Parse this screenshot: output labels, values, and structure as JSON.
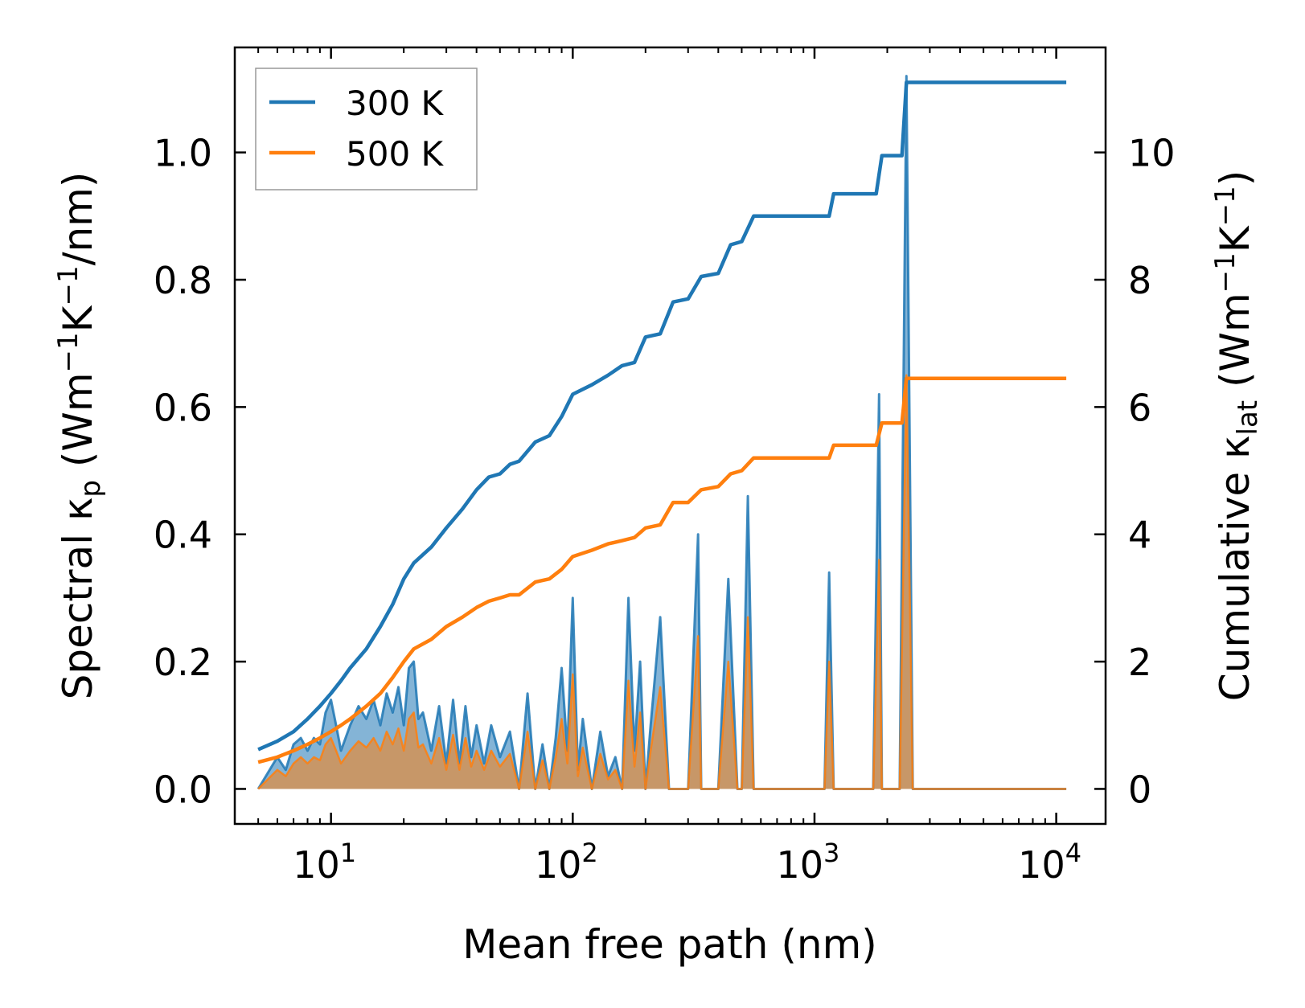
{
  "chart_data": {
    "type": "line",
    "x_scale": "log",
    "xlabel": "Mean free path (nm)",
    "xlim": [
      4.0,
      16000
    ],
    "xticks": [
      {
        "value": 10,
        "base": "10",
        "exp": "1"
      },
      {
        "value": 100,
        "base": "10",
        "exp": "2"
      },
      {
        "value": 1000,
        "base": "10",
        "exp": "3"
      },
      {
        "value": 10000,
        "base": "10",
        "exp": "4"
      }
    ],
    "y_left": {
      "label_parts": [
        "Spectral κ",
        "p",
        " (Wm",
        "−1",
        "K",
        "−1",
        "/nm)"
      ],
      "ylim": [
        -0.055,
        1.165
      ],
      "ticks": [
        0.0,
        0.2,
        0.4,
        0.6,
        0.8,
        1.0
      ],
      "tick_labels": [
        "0.0",
        "0.2",
        "0.4",
        "0.6",
        "0.8",
        "1.0"
      ]
    },
    "y_right": {
      "label_parts": [
        "Cumulative κ",
        "lat",
        " (Wm",
        "−1",
        "K",
        "−1",
        ")"
      ],
      "ylim": [
        -0.55,
        11.65
      ],
      "ticks": [
        0,
        2,
        4,
        6,
        8,
        10
      ],
      "tick_labels": [
        "0",
        "2",
        "4",
        "6",
        "8",
        "10"
      ]
    },
    "legend": {
      "position": "top-left",
      "entries": [
        "300 K",
        "500 K"
      ]
    },
    "colors": {
      "300 K": "#1f77b4",
      "500 K": "#ff7f0e",
      "fill_300": "#1f77b4",
      "fill_500": "#ff7f0e"
    },
    "cumulative": [
      {
        "name": "300 K",
        "axis": "right",
        "x": [
          5,
          6,
          7,
          8,
          9,
          10,
          11,
          12,
          14,
          16,
          18,
          20,
          22,
          26,
          30,
          35,
          40,
          45,
          50,
          55,
          60,
          70,
          80,
          90,
          100,
          120,
          140,
          160,
          180,
          200,
          230,
          260,
          300,
          340,
          400,
          450,
          500,
          560,
          700,
          900,
          1150,
          1200,
          1500,
          1800,
          1900,
          2300,
          2400,
          11000
        ],
        "y": [
          0.62,
          0.75,
          0.9,
          1.1,
          1.3,
          1.5,
          1.7,
          1.9,
          2.2,
          2.55,
          2.9,
          3.3,
          3.55,
          3.8,
          4.1,
          4.4,
          4.7,
          4.9,
          4.95,
          5.1,
          5.15,
          5.45,
          5.55,
          5.85,
          6.2,
          6.35,
          6.5,
          6.65,
          6.7,
          7.1,
          7.15,
          7.65,
          7.7,
          8.05,
          8.1,
          8.55,
          8.6,
          9.0,
          9.0,
          9.0,
          9.0,
          9.35,
          9.35,
          9.35,
          9.95,
          9.95,
          11.1,
          11.1
        ]
      },
      {
        "name": "500 K",
        "axis": "right",
        "x": [
          5,
          6,
          7,
          8,
          9,
          10,
          11,
          12,
          14,
          16,
          18,
          20,
          22,
          26,
          30,
          35,
          40,
          45,
          50,
          55,
          60,
          70,
          80,
          90,
          100,
          120,
          140,
          160,
          180,
          200,
          230,
          260,
          300,
          340,
          400,
          450,
          500,
          560,
          700,
          900,
          1150,
          1200,
          1500,
          1800,
          1900,
          2300,
          2400,
          11000
        ],
        "y": [
          0.42,
          0.5,
          0.6,
          0.7,
          0.8,
          0.9,
          1.0,
          1.1,
          1.3,
          1.5,
          1.75,
          2.0,
          2.2,
          2.35,
          2.55,
          2.7,
          2.85,
          2.95,
          3.0,
          3.05,
          3.05,
          3.25,
          3.3,
          3.45,
          3.65,
          3.75,
          3.85,
          3.9,
          3.95,
          4.1,
          4.15,
          4.5,
          4.5,
          4.7,
          4.75,
          4.95,
          5.0,
          5.2,
          5.2,
          5.2,
          5.2,
          5.4,
          5.4,
          5.4,
          5.75,
          5.75,
          6.45,
          6.45
        ]
      }
    ],
    "spectral": [
      {
        "name": "300 K",
        "axis": "left",
        "x": [
          5,
          6,
          6.5,
          7,
          7.5,
          8,
          8.5,
          9,
          9.5,
          10,
          10.5,
          11,
          12,
          13,
          14,
          15,
          16,
          17,
          18,
          19,
          20,
          21,
          22,
          23,
          24,
          26,
          28,
          30,
          32,
          34,
          36,
          38,
          40,
          43,
          46,
          50,
          55,
          60,
          65,
          70,
          75,
          80,
          85,
          90,
          95,
          100,
          105,
          110,
          120,
          130,
          140,
          150,
          160,
          170,
          180,
          190,
          200,
          210,
          230,
          250,
          260,
          280,
          300,
          330,
          340,
          360,
          400,
          440,
          480,
          500,
          530,
          560,
          600,
          1100,
          1150,
          1200,
          1250,
          1750,
          1850,
          1900,
          2250,
          2400,
          2550,
          11000
        ],
        "y": [
          0.0,
          0.05,
          0.03,
          0.07,
          0.08,
          0.06,
          0.08,
          0.07,
          0.12,
          0.14,
          0.1,
          0.06,
          0.1,
          0.13,
          0.11,
          0.14,
          0.1,
          0.15,
          0.12,
          0.16,
          0.1,
          0.19,
          0.2,
          0.11,
          0.12,
          0.06,
          0.13,
          0.04,
          0.14,
          0.04,
          0.13,
          0.05,
          0.1,
          0.04,
          0.1,
          0.05,
          0.09,
          0.0,
          0.15,
          0.0,
          0.07,
          0.0,
          0.08,
          0.19,
          0.06,
          0.3,
          0.03,
          0.11,
          0.0,
          0.09,
          0.02,
          0.05,
          0.0,
          0.3,
          0.06,
          0.2,
          0.0,
          0.1,
          0.27,
          0.0,
          0.0,
          0.0,
          0.0,
          0.4,
          0.0,
          0.0,
          0.0,
          0.33,
          0.0,
          0.0,
          0.46,
          0.0,
          0.0,
          0.0,
          0.34,
          0.0,
          0.0,
          0.0,
          0.62,
          0.0,
          0.0,
          1.12,
          0.0,
          0.0
        ]
      },
      {
        "name": "500 K",
        "axis": "left",
        "x": [
          5,
          6,
          6.5,
          7,
          7.5,
          8,
          8.5,
          9,
          9.5,
          10,
          10.5,
          11,
          12,
          13,
          14,
          15,
          16,
          17,
          18,
          19,
          20,
          21,
          22,
          23,
          24,
          26,
          28,
          30,
          32,
          34,
          36,
          38,
          40,
          43,
          46,
          50,
          55,
          60,
          65,
          70,
          75,
          80,
          85,
          90,
          95,
          100,
          105,
          110,
          120,
          130,
          140,
          150,
          160,
          170,
          180,
          190,
          200,
          210,
          230,
          250,
          260,
          280,
          300,
          330,
          340,
          360,
          400,
          440,
          480,
          500,
          530,
          560,
          600,
          1100,
          1150,
          1200,
          1250,
          1750,
          1850,
          1900,
          2250,
          2400,
          2550,
          11000
        ],
        "y": [
          0.0,
          0.03,
          0.02,
          0.04,
          0.05,
          0.04,
          0.05,
          0.045,
          0.07,
          0.08,
          0.06,
          0.04,
          0.06,
          0.075,
          0.065,
          0.08,
          0.06,
          0.09,
          0.07,
          0.095,
          0.06,
          0.11,
          0.12,
          0.065,
          0.07,
          0.04,
          0.08,
          0.03,
          0.085,
          0.03,
          0.08,
          0.035,
          0.06,
          0.03,
          0.06,
          0.035,
          0.055,
          0.0,
          0.09,
          0.0,
          0.045,
          0.0,
          0.05,
          0.11,
          0.04,
          0.18,
          0.02,
          0.065,
          0.0,
          0.055,
          0.015,
          0.03,
          0.0,
          0.17,
          0.035,
          0.12,
          0.0,
          0.06,
          0.16,
          0.0,
          0.0,
          0.0,
          0.0,
          0.24,
          0.0,
          0.0,
          0.0,
          0.2,
          0.0,
          0.0,
          0.27,
          0.0,
          0.0,
          0.0,
          0.2,
          0.0,
          0.0,
          0.0,
          0.36,
          0.0,
          0.0,
          0.65,
          0.0,
          0.0
        ]
      }
    ]
  }
}
